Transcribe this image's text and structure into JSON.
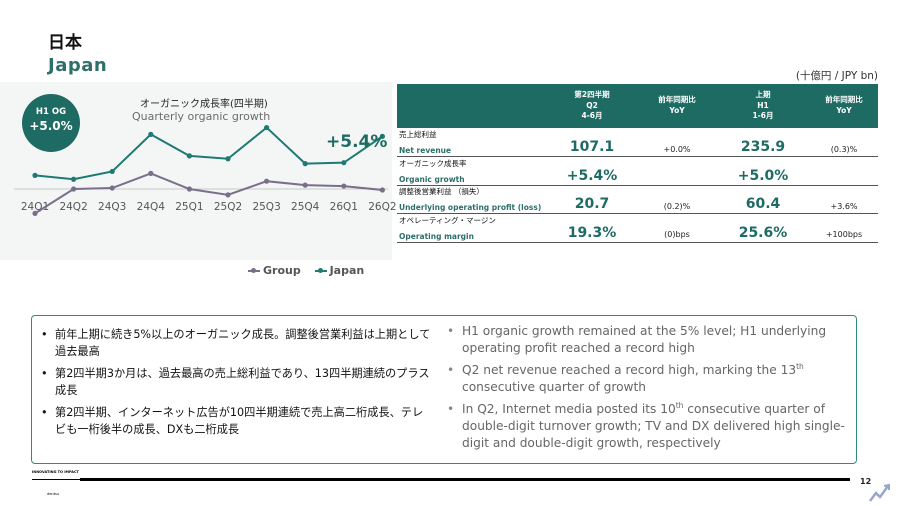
{
  "header": {
    "title_jp": "日本",
    "title_en": "Japan"
  },
  "badge": {
    "line1": "H1 OG",
    "line2": "+5.0%"
  },
  "chart": {
    "title_jp": "オーガニック成長率(四半期)",
    "title_en": "Quarterly organic growth",
    "callout": "+5.4%"
  },
  "chart_data": {
    "type": "line",
    "title": "オーガニック成長率(四半期) Quarterly organic growth",
    "categories": [
      "24Q1",
      "24Q2",
      "24Q3",
      "24Q4",
      "25Q1",
      "25Q2",
      "25Q3",
      "25Q4",
      "26Q1",
      "26Q2"
    ],
    "series": [
      {
        "name": "Group",
        "color": "#7a6f8a",
        "values": [
          -2.5,
          0.0,
          0.1,
          1.6,
          0.0,
          -0.6,
          0.8,
          0.4,
          0.3,
          -0.1
        ]
      },
      {
        "name": "Japan",
        "color": "#1e7a72",
        "values": [
          1.4,
          1.0,
          1.8,
          5.6,
          3.4,
          3.1,
          6.3,
          2.6,
          2.7,
          5.4
        ]
      }
    ],
    "ylim": [
      -3,
      8
    ],
    "grid": false,
    "legend": "bottom"
  },
  "table": {
    "unit": "(十億円 / JPY bn)",
    "headers": [
      {
        "l1": "第2四半期",
        "l2": "Q2",
        "l3": "4-6月"
      },
      {
        "l1": "前年同期比",
        "l2": "YoY",
        "l3": ""
      },
      {
        "l1": "上期",
        "l2": "H1",
        "l3": "1-6月"
      },
      {
        "l1": "前年同期比",
        "l2": "YoY",
        "l3": ""
      }
    ],
    "rows": [
      {
        "jp": "売上総利益",
        "en": "Net revenue",
        "q2": "107.1",
        "q2_yoy": "+0.0%",
        "h1": "235.9",
        "h1_yoy": "(0.3)%"
      },
      {
        "jp": "オーガニック成長率",
        "en": "Organic growth",
        "q2": "+5.4%",
        "q2_yoy": "",
        "h1": "+5.0%",
        "h1_yoy": ""
      },
      {
        "jp": "調整後営業利益 （損失）",
        "en": "Underlying operating profit (loss)",
        "q2": "20.7",
        "q2_yoy": "(0.2)%",
        "h1": "60.4",
        "h1_yoy": "+3.6%"
      },
      {
        "jp": "オペレーティング・マージン",
        "en": "Operating margin",
        "q2": "19.3%",
        "q2_yoy": "(0)bps",
        "h1": "25.6%",
        "h1_yoy": "+100bps"
      }
    ]
  },
  "bullets_jp": [
    "前年上期に続き5%以上のオーガニック成長。調整後営業利益は上期として過去最高",
    "第2四半期3か月は、過去最高の売上総利益であり、13四半期連続のプラス成長",
    "第2四半期、インターネット広告が10四半期連続で売上高二桁成長、テレビも一桁後半の成長、DXも二桁成長"
  ],
  "bullets_en": [
    {
      "a": "H1 organic growth remained at the 5% level; H1 underlying operating profit reached a record high"
    },
    {
      "a": "Q2 net revenue reached a record high, marking the 13",
      "sup": "th",
      "b": " consecutive quarter of growth"
    },
    {
      "a": "In Q2, Internet media posted its 10",
      "sup": "th",
      "b": " consecutive quarter of double-digit turnover growth; TV and DX delivered high single-digit and double-digit growth, respectively"
    }
  ],
  "footer": {
    "logo_line": "INNOVATING TO IMPACT",
    "logo_sub": "dentsu",
    "page": "12"
  }
}
